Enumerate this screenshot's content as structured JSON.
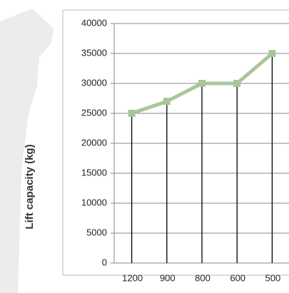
{
  "chart_data": {
    "type": "line",
    "y_label": "Lift capacity (kg)",
    "categories": [
      "1200",
      "900",
      "800",
      "600",
      "500"
    ],
    "series": [
      {
        "name": "Lift capacity",
        "color": "#a9c69a",
        "values": [
          25000,
          27000,
          30000,
          30000,
          35000
        ]
      }
    ],
    "ylim": [
      0,
      40000
    ],
    "yticks": [
      0,
      5000,
      10000,
      15000,
      20000,
      25000,
      30000,
      35000,
      40000
    ],
    "grid": true,
    "drop_lines": true
  }
}
